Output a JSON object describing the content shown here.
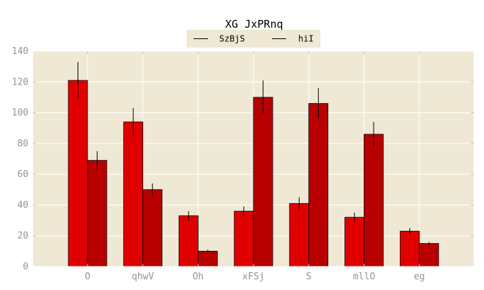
{
  "chart_data": {
    "type": "bar",
    "title": "XG JxPRnq",
    "xlabel": "",
    "ylabel": "",
    "categories": [
      "O",
      "qhwV",
      "Oh",
      "xFSj",
      "S",
      "mllO",
      "eg"
    ],
    "ylim": [
      0,
      140
    ],
    "yticks": [
      "0",
      "20",
      "40",
      "60",
      "80",
      "100",
      "120",
      "140"
    ],
    "grid": true,
    "legend_position": "top-center",
    "series": [
      {
        "name": "SzBjS",
        "values": [
          121,
          94,
          33,
          36,
          41,
          32,
          23
        ],
        "errors": [
          12,
          9,
          3,
          3,
          4,
          3,
          2
        ],
        "color": "#e00000"
      },
      {
        "name": "hiI",
        "values": [
          69,
          50,
          10,
          110,
          106,
          86,
          15
        ],
        "errors": [
          6,
          4,
          1,
          11,
          10,
          8,
          1
        ],
        "color": "#b80000"
      }
    ],
    "colors": {
      "plot_background": "#efe8d5",
      "grid": "#ffffff",
      "legend_background": "#efe8d5"
    }
  }
}
